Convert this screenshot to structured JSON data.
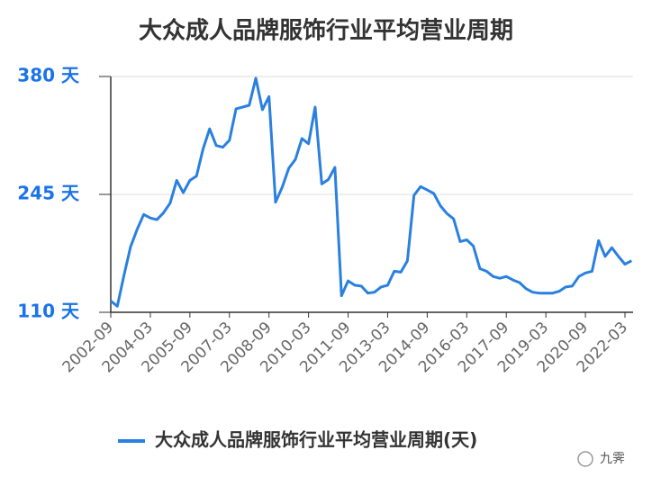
{
  "chart_data": {
    "type": "line",
    "title": "大众成人品牌服饰行业平均营业周期",
    "categories": [
      "2002-09",
      null,
      null,
      null,
      null,
      null,
      "2004-03",
      null,
      null,
      null,
      null,
      null,
      "2005-09",
      null,
      null,
      null,
      null,
      null,
      "2007-03",
      null,
      null,
      null,
      null,
      null,
      "2008-09",
      null,
      null,
      null,
      null,
      null,
      "2010-03",
      null,
      null,
      null,
      null,
      null,
      "2011-09",
      null,
      null,
      null,
      null,
      null,
      "2013-03",
      null,
      null,
      null,
      null,
      null,
      "2014-09",
      null,
      null,
      null,
      null,
      null,
      "2016-03",
      null,
      null,
      null,
      null,
      null,
      "2017-09",
      null,
      null,
      null,
      null,
      null,
      "2019-03",
      null,
      null,
      null,
      null,
      null,
      "2020-09",
      null,
      null,
      null,
      null,
      null,
      "2022-03",
      null
    ],
    "series": [
      {
        "name": "大众成人品牌服饰行业平均营业周期(天)",
        "color": "#2a80e0",
        "values": [
          123,
          117,
          152,
          185,
          205,
          222,
          218,
          216,
          224,
          235,
          261,
          247,
          261,
          266,
          297,
          320,
          301,
          299,
          307,
          343,
          345,
          347,
          378,
          342,
          357,
          236,
          253,
          275,
          285,
          309,
          303,
          345,
          257,
          262,
          276,
          129,
          146,
          141,
          140,
          132,
          133,
          139,
          141,
          157,
          156,
          169,
          244,
          254,
          250,
          246,
          232,
          223,
          217,
          191,
          193,
          186,
          160,
          157,
          151,
          149,
          151,
          147,
          144,
          137,
          133,
          132,
          132,
          132,
          134,
          139,
          140,
          151,
          155,
          157,
          192,
          174,
          184,
          174,
          165,
          169
        ]
      }
    ],
    "ylim": [
      110,
      380
    ],
    "yticks": [
      {
        "value": 110,
        "label": "110 天"
      },
      {
        "value": 245,
        "label": "245 天"
      },
      {
        "value": 380,
        "label": "380 天"
      }
    ],
    "grid": true,
    "legend": "bottom",
    "watermark": "九霁"
  }
}
